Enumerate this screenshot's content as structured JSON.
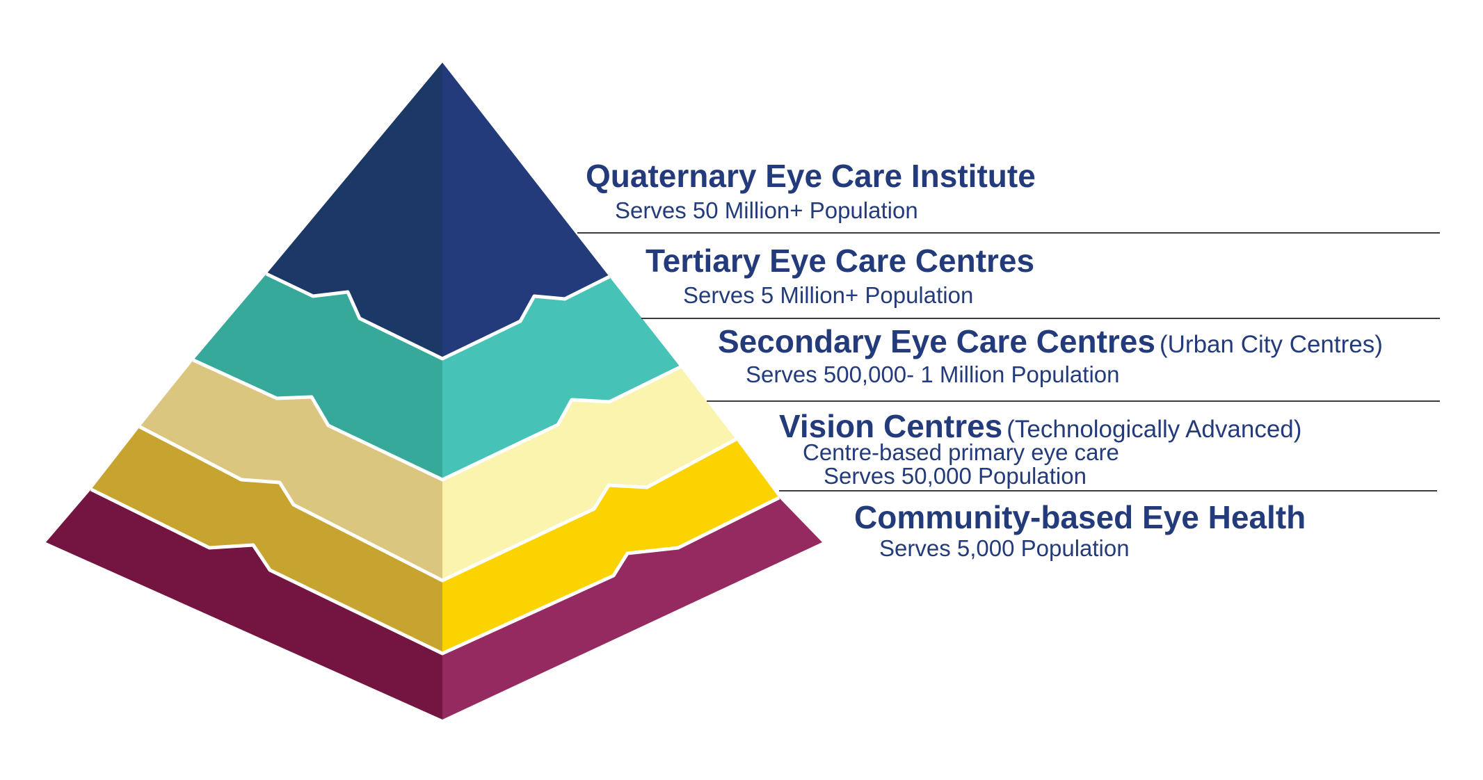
{
  "diagram": {
    "tiers": [
      {
        "title": "Quaternary Eye Care Institute",
        "note": "",
        "details": [
          "Serves 50 Million+ Population"
        ],
        "colors": {
          "left": "#1B3866",
          "right": "#233B7B"
        }
      },
      {
        "title": "Tertiary Eye Care Centres",
        "note": "",
        "details": [
          "Serves 5 Million+ Population"
        ],
        "colors": {
          "left": "#37A99A",
          "right": "#46C2B6"
        }
      },
      {
        "title": "Secondary Eye Care Centres",
        "note": "(Urban City Centres)",
        "details": [
          "Serves 500,000- 1 Million Population"
        ],
        "colors": {
          "left": "#DAC67E",
          "right": "#FBF4AE"
        }
      },
      {
        "title": "Vision Centres",
        "note": "(Technologically Advanced)",
        "details": [
          "Centre-based primary eye care",
          "Serves 50,000 Population"
        ],
        "colors": {
          "left": "#C7A42F",
          "right": "#FBD300"
        }
      },
      {
        "title": "Community-based Eye Health",
        "note": "",
        "details": [
          "Serves 5,000 Population"
        ],
        "colors": {
          "left": "#731441",
          "right": "#952A61"
        }
      }
    ],
    "text_color": "#233B7B",
    "divider_color": "#3a3a3a"
  }
}
